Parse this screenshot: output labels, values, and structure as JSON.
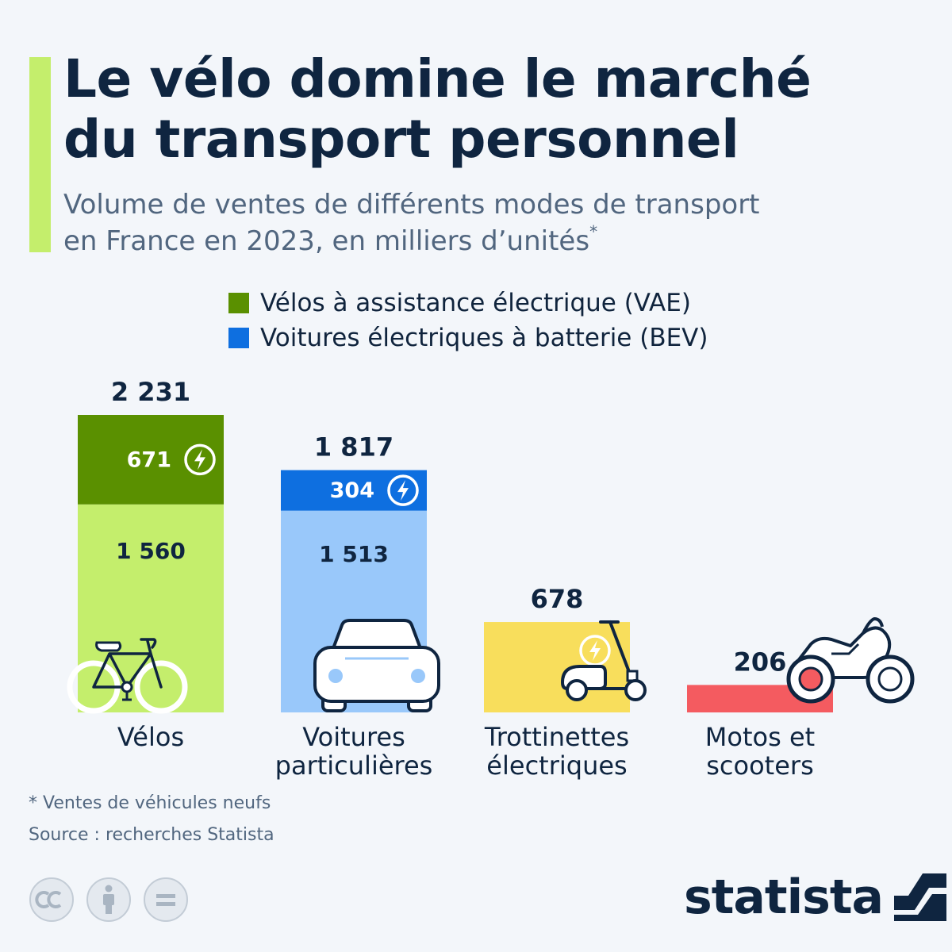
{
  "header": {
    "title_line1": "Le vélo domine le marché",
    "title_line2": "du transport personnel",
    "subtitle_line1": "Volume de ventes de différents modes de transport",
    "subtitle_line2": "en France en 2023, en milliers d’unités",
    "subtitle_mark": "*"
  },
  "legend": {
    "items": [
      {
        "label": "Vélos à assistance électrique (VAE)",
        "color": "#5a9000"
      },
      {
        "label": "Voitures électriques à batterie (BEV)",
        "color": "#0e6fe0"
      }
    ]
  },
  "chart_data": {
    "type": "bar",
    "stacked": true,
    "categories": [
      "Vélos",
      "Voitures particulières",
      "Trottinettes électriques",
      "Motos et scooters"
    ],
    "category_labels": [
      [
        "Vélos"
      ],
      [
        "Voitures",
        "particulières"
      ],
      [
        "Trottinettes",
        "électriques"
      ],
      [
        "Motos et",
        "scooters"
      ]
    ],
    "totals": [
      2231,
      1817,
      678,
      206
    ],
    "total_labels": [
      "2 231",
      "1 817",
      "678",
      "206"
    ],
    "segments": [
      [
        {
          "value": 1560,
          "label": "1 560",
          "color": "#c4ee6c",
          "text_color": "#0f2540",
          "electric": false
        },
        {
          "value": 671,
          "label": "671",
          "color": "#5a9000",
          "text_color": "#ffffff",
          "electric": true
        }
      ],
      [
        {
          "value": 1513,
          "label": "1 513",
          "color": "#99c8fa",
          "text_color": "#0f2540",
          "electric": false
        },
        {
          "value": 304,
          "label": "304",
          "color": "#0e6fe0",
          "text_color": "#ffffff",
          "electric": true
        }
      ],
      [
        {
          "value": 678,
          "label": "",
          "color": "#f8de5c",
          "text_color": "#0f2540",
          "electric": true
        }
      ],
      [
        {
          "value": 206,
          "label": "",
          "color": "#f45b60",
          "text_color": "#0f2540",
          "electric": false
        }
      ]
    ],
    "icons": [
      "bicycle-icon",
      "car-icon",
      "scooter-icon",
      "motorcycle-icon"
    ],
    "ylim": [
      0,
      2231
    ]
  },
  "footer": {
    "note": "* Ventes de véhicules neufs",
    "source": "Source : recherches Statista",
    "brand": "statista",
    "license_icons": [
      "cc-icon",
      "attribution-icon",
      "no-derivatives-icon"
    ]
  },
  "colors": {
    "accent": "#c4ee6c",
    "title": "#0f2540",
    "subtitle": "#51667f",
    "background": "#f3f6fa"
  }
}
